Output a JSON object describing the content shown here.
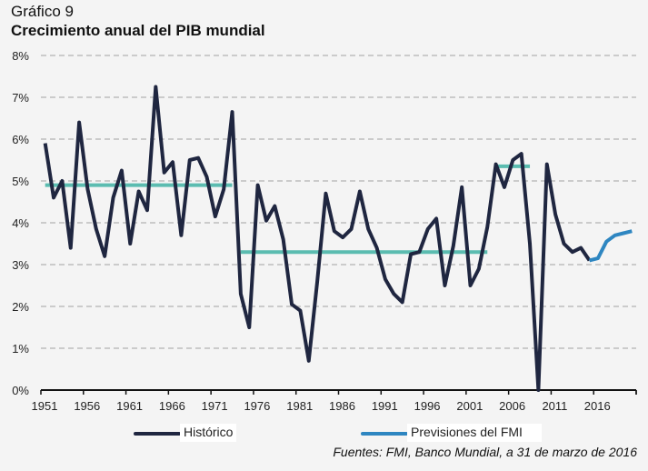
{
  "header": {
    "supertitle": "Gráfico 9",
    "title": "Crecimiento anual del PIB mundial"
  },
  "source": "Fuentes: FMI, Banco Mundial, a 31 de marzo de 2016",
  "chart_data": {
    "type": "line",
    "title": "Crecimiento anual del PIB mundial",
    "ylim": [
      0,
      8
    ],
    "yticks": [
      "0%",
      "1%",
      "2%",
      "3%",
      "4%",
      "5%",
      "6%",
      "7%",
      "8%"
    ],
    "xticks": [
      "1951",
      "1956",
      "1961",
      "1966",
      "1971",
      "1976",
      "1981",
      "1986",
      "1991",
      "1996",
      "2001",
      "2006",
      "2011",
      "2016"
    ],
    "grid": true,
    "legend_position": "bottom",
    "colors": {
      "historico": "#1f2640",
      "previsiones": "#2e86c1",
      "media": "#5bbcb0"
    },
    "series": [
      {
        "name": "Histórico",
        "start_year": 1951,
        "values": [
          5.9,
          4.6,
          5.0,
          3.4,
          6.4,
          4.8,
          3.85,
          3.2,
          4.6,
          5.25,
          3.5,
          4.75,
          4.3,
          7.25,
          5.2,
          5.45,
          3.7,
          5.5,
          5.55,
          5.1,
          4.15,
          4.8,
          6.65,
          2.3,
          1.5,
          4.9,
          4.05,
          4.4,
          3.6,
          2.05,
          1.9,
          0.7,
          2.6,
          4.7,
          3.8,
          3.65,
          3.85,
          4.75,
          3.85,
          3.4,
          2.65,
          2.3,
          2.1,
          3.25,
          3.3,
          3.85,
          4.1,
          2.5,
          3.45,
          4.85,
          2.5,
          2.9,
          3.9,
          5.4,
          4.85,
          5.5,
          5.65,
          3.5,
          0.0,
          5.4,
          4.2,
          3.5,
          3.3,
          3.4,
          3.1
        ]
      },
      {
        "name": "Previsiones del FMI",
        "start_year": 2015,
        "values": [
          3.1,
          3.15,
          3.55,
          3.7,
          3.75,
          3.8
        ]
      }
    ],
    "averages": [
      {
        "from": 1951,
        "to": 1973,
        "value": 4.9
      },
      {
        "from": 1974,
        "to": 2003,
        "value": 3.3
      },
      {
        "from": 2004,
        "to": 2008,
        "value": 5.35
      }
    ]
  }
}
